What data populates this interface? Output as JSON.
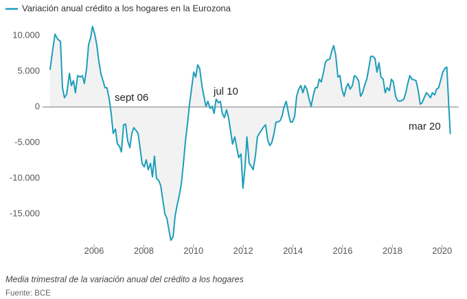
{
  "chart_data": {
    "type": "line",
    "series": [
      {
        "name": "Variación anual crédito a los hogares en la Eurozona",
        "color": "#1b9db8",
        "x": [
          2004.23,
          2004.34,
          2004.43,
          2004.54,
          2004.65,
          2004.73,
          2004.81,
          2004.9,
          2005.01,
          2005.09,
          2005.17,
          2005.25,
          2005.34,
          2005.45,
          2005.53,
          2005.61,
          2005.7,
          2005.78,
          2005.86,
          2005.94,
          2006.03,
          2006.11,
          2006.19,
          2006.28,
          2006.36,
          2006.44,
          2006.52,
          2006.61,
          2006.69,
          2006.77,
          2006.86,
          2006.94,
          2007.02,
          2007.1,
          2007.19,
          2007.27,
          2007.35,
          2007.44,
          2007.52,
          2007.6,
          2007.69,
          2007.77,
          2007.85,
          2007.93,
          2008.02,
          2008.1,
          2008.18,
          2008.27,
          2008.35,
          2008.43,
          2008.51,
          2008.6,
          2008.68,
          2008.76,
          2008.85,
          2008.93,
          2009.01,
          2009.09,
          2009.18,
          2009.26,
          2009.34,
          2009.43,
          2009.51,
          2009.59,
          2009.67,
          2009.76,
          2009.84,
          2009.92,
          2010.01,
          2010.09,
          2010.17,
          2010.25,
          2010.34,
          2010.42,
          2010.5,
          2010.58,
          2010.67,
          2010.75,
          2010.83,
          2010.91,
          2011.0,
          2011.08,
          2011.16,
          2011.24,
          2011.33,
          2011.41,
          2011.49,
          2011.57,
          2011.66,
          2011.74,
          2011.82,
          2011.91,
          2011.99,
          2012.07,
          2012.15,
          2012.24,
          2012.32,
          2012.4,
          2012.49,
          2012.57,
          2012.65,
          2012.73,
          2012.82,
          2012.9,
          2012.99,
          2013.07,
          2013.15,
          2013.24,
          2013.32,
          2013.4,
          2013.49,
          2013.57,
          2013.65,
          2013.73,
          2013.82,
          2013.9,
          2013.98,
          2014.07,
          2014.15,
          2014.23,
          2014.32,
          2014.4,
          2014.48,
          2014.56,
          2014.65,
          2014.73,
          2014.81,
          2014.9,
          2014.98,
          2015.06,
          2015.14,
          2015.23,
          2015.31,
          2015.39,
          2015.48,
          2015.56,
          2015.64,
          2015.72,
          2015.81,
          2015.89,
          2015.97,
          2016.06,
          2016.14,
          2016.22,
          2016.3,
          2016.39,
          2016.47,
          2016.55,
          2016.64,
          2016.72,
          2016.8,
          2016.88,
          2016.97,
          2017.05,
          2017.13,
          2017.21,
          2017.3,
          2017.38,
          2017.46,
          2017.54,
          2017.63,
          2017.71,
          2017.79,
          2017.88,
          2017.96,
          2018.04,
          2018.13,
          2018.21,
          2018.29,
          2018.37,
          2018.46,
          2018.54,
          2018.62,
          2018.7,
          2018.79,
          2018.87,
          2018.95,
          2019.04,
          2019.12,
          2019.2,
          2019.28,
          2019.37,
          2019.45,
          2019.53,
          2019.61,
          2019.7,
          2019.78,
          2019.86,
          2019.94,
          2020.03,
          2020.11,
          2020.19,
          2020.27,
          2020.33
        ],
        "values": [
          5200,
          8100,
          10200,
          9500,
          9200,
          2700,
          1300,
          1800,
          4700,
          3000,
          3700,
          2000,
          4400,
          4200,
          4400,
          3300,
          5400,
          8700,
          9700,
          11300,
          10200,
          8700,
          6500,
          4600,
          3700,
          2700,
          2700,
          1100,
          -900,
          -3700,
          -3100,
          -5200,
          -5500,
          -6300,
          -2500,
          -2400,
          -4700,
          -5700,
          -3700,
          -2900,
          -3300,
          -3700,
          -5700,
          -7900,
          -8400,
          -7400,
          -8800,
          -7900,
          -9800,
          -6900,
          -10000,
          -10300,
          -11000,
          -12900,
          -15000,
          -15600,
          -17200,
          -18700,
          -18200,
          -15300,
          -13800,
          -12400,
          -10800,
          -8100,
          -5000,
          -2300,
          400,
          2500,
          4900,
          4200,
          5900,
          5400,
          3000,
          1500,
          100,
          800,
          -200,
          100,
          -900,
          1100,
          600,
          800,
          -900,
          -1500,
          -400,
          -1500,
          -3300,
          -5200,
          -4200,
          -5700,
          -7100,
          -6600,
          -11400,
          -8600,
          -4200,
          -7900,
          -8300,
          -8800,
          -6900,
          -4200,
          -3700,
          -3300,
          -2800,
          -2500,
          -4700,
          -5400,
          -5000,
          -3700,
          -2100,
          -2100,
          -1900,
          -1200,
          100,
          800,
          -900,
          -2100,
          -2100,
          -1300,
          1500,
          2500,
          3000,
          2000,
          3000,
          2500,
          1100,
          100,
          1500,
          2700,
          2700,
          3900,
          3500,
          4900,
          6300,
          6600,
          6700,
          7800,
          8600,
          7300,
          4200,
          4400,
          2500,
          1500,
          2700,
          3300,
          2500,
          3000,
          4400,
          4200,
          3700,
          1500,
          2000,
          3000,
          3900,
          5400,
          7100,
          7100,
          6800,
          4900,
          6200,
          4200,
          3900,
          2000,
          2700,
          2300,
          3900,
          3500,
          1500,
          900,
          800,
          900,
          1100,
          2000,
          3300,
          4400,
          3900,
          3800,
          3700,
          2300,
          400,
          600,
          1300,
          2000,
          1700,
          1300,
          2000,
          1700,
          2500,
          2700,
          3700,
          4900,
          5400,
          5600,
          100,
          -3800
        ]
      }
    ],
    "annotations": [
      "sept 06",
      "jul 10",
      "mar 20"
    ],
    "xlim": [
      2003.93,
      2020.67
    ],
    "xticks": [
      2006,
      2008,
      2010,
      2012,
      2014,
      2016,
      2018,
      2020
    ],
    "ylim": [
      -19000,
      12000
    ],
    "yticks": [
      {
        "value": 10000,
        "label": "10.000"
      },
      {
        "value": 5000,
        "label": "5.000"
      },
      0,
      {
        "value": -5000,
        "label": "-5.000"
      },
      {
        "value": -10000,
        "label": "-10.000"
      },
      {
        "value": -15000,
        "label": "-15.000"
      }
    ],
    "zero_line": true,
    "area_fill": "#f2f2f2",
    "caption": "Media trimestral de la variación anual del crédito a los hogares",
    "source": "Fuente: BCE"
  }
}
